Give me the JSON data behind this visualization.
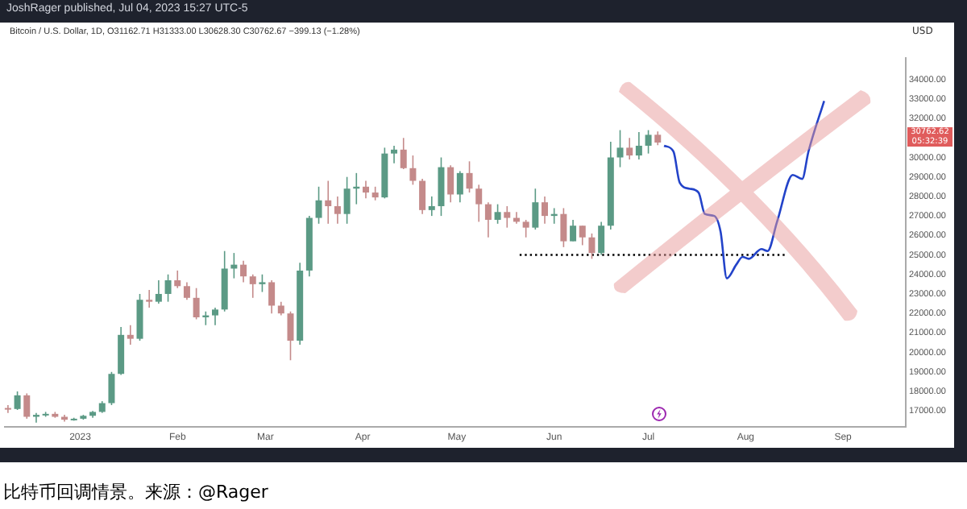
{
  "chart_data": {
    "type": "candlestick",
    "title": "JoshRager published, Jul 04, 2023 15:27 UTC-5",
    "subtitle": "Bitcoin / U.S. Dollar, 1D, O31162.71 H31333.00 L30628.30 C30762.67 −399.13 (−1.28%)",
    "ylabel": "USD",
    "x": [
      "2022-12-09",
      "2022-12-12",
      "2022-12-15",
      "2022-12-18",
      "2022-12-21",
      "2022-12-24",
      "2022-12-27",
      "2022-12-30",
      "2023-01-02",
      "2023-01-05",
      "2023-01-08",
      "2023-01-11",
      "2023-01-14",
      "2023-01-17",
      "2023-01-20",
      "2023-01-23",
      "2023-01-26",
      "2023-01-29",
      "2023-02-01",
      "2023-02-04",
      "2023-02-07",
      "2023-02-10",
      "2023-02-13",
      "2023-02-16",
      "2023-02-19",
      "2023-02-22",
      "2023-02-25",
      "2023-02-28",
      "2023-03-03",
      "2023-03-06",
      "2023-03-09",
      "2023-03-12",
      "2023-03-15",
      "2023-03-18",
      "2023-03-21",
      "2023-03-24",
      "2023-03-27",
      "2023-03-30",
      "2023-04-02",
      "2023-04-05",
      "2023-04-08",
      "2023-04-11",
      "2023-04-14",
      "2023-04-17",
      "2023-04-20",
      "2023-04-23",
      "2023-04-26",
      "2023-04-29",
      "2023-05-02",
      "2023-05-05",
      "2023-05-08",
      "2023-05-11",
      "2023-05-14",
      "2023-05-17",
      "2023-05-20",
      "2023-05-23",
      "2023-05-26",
      "2023-05-29",
      "2023-06-01",
      "2023-06-04",
      "2023-06-07",
      "2023-06-10",
      "2023-06-13",
      "2023-06-16",
      "2023-06-19",
      "2023-06-22",
      "2023-06-25",
      "2023-06-28",
      "2023-07-01",
      "2023-07-04"
    ],
    "ohlc": [
      [
        17150,
        17300,
        16900,
        17100
      ],
      [
        17100,
        18000,
        17050,
        17800
      ],
      [
        17800,
        17900,
        16600,
        16700
      ],
      [
        16700,
        16900,
        16400,
        16800
      ],
      [
        16800,
        16950,
        16700,
        16850
      ],
      [
        16850,
        16950,
        16650,
        16700
      ],
      [
        16700,
        16800,
        16450,
        16550
      ],
      [
        16550,
        16650,
        16500,
        16600
      ],
      [
        16600,
        16800,
        16550,
        16750
      ],
      [
        16750,
        17000,
        16650,
        16950
      ],
      [
        16950,
        17500,
        16900,
        17400
      ],
      [
        17400,
        19000,
        17300,
        18900
      ],
      [
        18900,
        21300,
        18850,
        20900
      ],
      [
        20900,
        21400,
        20400,
        20700
      ],
      [
        20700,
        23000,
        20600,
        22700
      ],
      [
        22700,
        23200,
        22300,
        22600
      ],
      [
        22600,
        23700,
        22500,
        23000
      ],
      [
        23000,
        24000,
        22600,
        23700
      ],
      [
        23700,
        24200,
        23300,
        23400
      ],
      [
        23400,
        23600,
        22700,
        22800
      ],
      [
        22800,
        23300,
        21700,
        21800
      ],
      [
        21800,
        22100,
        21400,
        21900
      ],
      [
        21900,
        22300,
        21400,
        22200
      ],
      [
        22200,
        25200,
        22100,
        24300
      ],
      [
        24300,
        25100,
        23800,
        24500
      ],
      [
        24500,
        24700,
        23600,
        23900
      ],
      [
        23900,
        24000,
        22800,
        23500
      ],
      [
        23500,
        24000,
        23100,
        23600
      ],
      [
        23600,
        23700,
        22000,
        22400
      ],
      [
        22400,
        22600,
        21900,
        22000
      ],
      [
        22000,
        22100,
        19600,
        20600
      ],
      [
        20600,
        24600,
        20400,
        24200
      ],
      [
        24200,
        27000,
        23900,
        26900
      ],
      [
        26900,
        28500,
        26600,
        27800
      ],
      [
        27800,
        28800,
        26600,
        27500
      ],
      [
        27500,
        28000,
        26600,
        27100
      ],
      [
        27100,
        29000,
        26600,
        28400
      ],
      [
        28400,
        29200,
        27600,
        28500
      ],
      [
        28500,
        28800,
        27900,
        28200
      ],
      [
        28200,
        28500,
        27800,
        27950
      ],
      [
        27950,
        30500,
        27900,
        30200
      ],
      [
        30200,
        30600,
        29700,
        30400
      ],
      [
        30400,
        31000,
        29400,
        29450
      ],
      [
        29450,
        30100,
        28600,
        28800
      ],
      [
        28800,
        28900,
        27100,
        27300
      ],
      [
        27300,
        28000,
        27000,
        27500
      ],
      [
        27500,
        30000,
        27000,
        29500
      ],
      [
        29500,
        29600,
        27700,
        28100
      ],
      [
        28100,
        29300,
        27700,
        29200
      ],
      [
        29200,
        29800,
        28200,
        28400
      ],
      [
        28400,
        28600,
        26700,
        27600
      ],
      [
        27600,
        27700,
        25900,
        26800
      ],
      [
        26800,
        27600,
        26600,
        27200
      ],
      [
        27200,
        27500,
        26400,
        26900
      ],
      [
        26900,
        27200,
        26600,
        26700
      ],
      [
        26700,
        26800,
        25900,
        26400
      ],
      [
        26400,
        28400,
        26300,
        27700
      ],
      [
        27700,
        28000,
        26600,
        27000
      ],
      [
        27000,
        27400,
        26600,
        27100
      ],
      [
        27100,
        27400,
        25400,
        25700
      ],
      [
        25700,
        26800,
        25700,
        26500
      ],
      [
        26500,
        26500,
        25500,
        25900
      ],
      [
        25900,
        26100,
        24800,
        25100
      ],
      [
        25100,
        26700,
        25000,
        26500
      ],
      [
        26500,
        30800,
        26300,
        30000
      ],
      [
        30000,
        31400,
        29500,
        30500
      ],
      [
        30500,
        31000,
        29900,
        30100
      ],
      [
        30100,
        31300,
        29900,
        30600
      ],
      [
        30600,
        31400,
        30200,
        31160
      ],
      [
        31162.71,
        31333,
        30628.3,
        30762.67
      ]
    ],
    "colors": [
      "#c48a8a",
      "#5b9a85",
      "#c48a8a",
      "#5b9a85",
      "#5b9a85",
      "#c48a8a",
      "#c48a8a",
      "#5b9a85",
      "#5b9a85",
      "#5b9a85",
      "#5b9a85",
      "#5b9a85",
      "#5b9a85",
      "#c48a8a",
      "#5b9a85",
      "#c48a8a",
      "#5b9a85",
      "#5b9a85",
      "#c48a8a",
      "#c48a8a",
      "#c48a8a",
      "#5b9a85",
      "#5b9a85",
      "#5b9a85",
      "#5b9a85",
      "#c48a8a",
      "#c48a8a",
      "#5b9a85",
      "#c48a8a",
      "#c48a8a",
      "#c48a8a",
      "#5b9a85",
      "#5b9a85",
      "#5b9a85",
      "#c48a8a",
      "#c48a8a",
      "#5b9a85",
      "#5b9a85",
      "#c48a8a",
      "#c48a8a",
      "#5b9a85",
      "#5b9a85",
      "#c48a8a",
      "#c48a8a",
      "#c48a8a",
      "#5b9a85",
      "#5b9a85",
      "#c48a8a",
      "#5b9a85",
      "#c48a8a",
      "#c48a8a",
      "#c48a8a",
      "#5b9a85",
      "#c48a8a",
      "#c48a8a",
      "#c48a8a",
      "#5b9a85",
      "#c48a8a",
      "#5b9a85",
      "#c48a8a",
      "#5b9a85",
      "#c48a8a",
      "#c48a8a",
      "#5b9a85",
      "#5b9a85",
      "#5b9a85",
      "#c48a8a",
      "#5b9a85",
      "#5b9a85",
      "#c48a8a"
    ],
    "series": [
      {
        "type": "line",
        "color": "#2343c9",
        "x": [
          "2023-07-06",
          "2023-07-09",
          "2023-07-11",
          "2023-07-14",
          "2023-07-17",
          "2023-07-19",
          "2023-07-22",
          "2023-07-24",
          "2023-07-26",
          "2023-07-29",
          "2023-07-31",
          "2023-08-02",
          "2023-08-06",
          "2023-08-08",
          "2023-08-11",
          "2023-08-16",
          "2023-08-19",
          "2023-08-21",
          "2023-08-26"
        ],
        "values": [
          30600,
          30300,
          28700,
          28400,
          28200,
          27100,
          27000,
          26200,
          23800,
          24500,
          24900,
          24800,
          25300,
          25200,
          26700,
          29100,
          28900,
          30300,
          32900
        ]
      },
      {
        "type": "line",
        "color": "#000000",
        "line_style": "dotted",
        "x": [
          "2023-05-21",
          "2023-08-14"
        ],
        "values": [
          25000,
          25000
        ]
      }
    ],
    "xlim": [
      "2022-12-08",
      "2023-09-21"
    ],
    "xticks": [
      {
        "value": "2023-01-01",
        "label": "2023"
      },
      {
        "value": "2023-02-01",
        "label": "Feb"
      },
      {
        "value": "2023-03-01",
        "label": "Mar"
      },
      {
        "value": "2023-04-01",
        "label": "Apr"
      },
      {
        "value": "2023-05-01",
        "label": "May"
      },
      {
        "value": "2023-06-01",
        "label": "Jun"
      },
      {
        "value": "2023-07-01",
        "label": "Jul"
      },
      {
        "value": "2023-08-01",
        "label": "Aug"
      },
      {
        "value": "2023-09-01",
        "label": "Sep"
      }
    ],
    "ylim": [
      16200,
      35100
    ],
    "yticks": [
      {
        "value": 17000,
        "label": "17000.00"
      },
      {
        "value": 18000,
        "label": "18000.00"
      },
      {
        "value": 19000,
        "label": "19000.00"
      },
      {
        "value": 20000,
        "label": "20000.00"
      },
      {
        "value": 21000,
        "label": "21000.00"
      },
      {
        "value": 22000,
        "label": "22000.00"
      },
      {
        "value": 23000,
        "label": "23000.00"
      },
      {
        "value": 24000,
        "label": "24000.00"
      },
      {
        "value": 25000,
        "label": "25000.00"
      },
      {
        "value": 26000,
        "label": "26000.00"
      },
      {
        "value": 27000,
        "label": "27000.00"
      },
      {
        "value": 28000,
        "label": "28000.00"
      },
      {
        "value": 29000,
        "label": "29000.00"
      },
      {
        "value": 30000,
        "label": "30000.00"
      },
      {
        "value": 32000,
        "label": "32000.00"
      },
      {
        "value": 33000,
        "label": "33000.00"
      },
      {
        "value": 34000,
        "label": "34000.00"
      }
    ],
    "grid": false,
    "legend": false,
    "annotations": [
      "30762.62",
      "05:32:39",
      "比特币回调情景。来源：@Rager"
    ]
  }
}
